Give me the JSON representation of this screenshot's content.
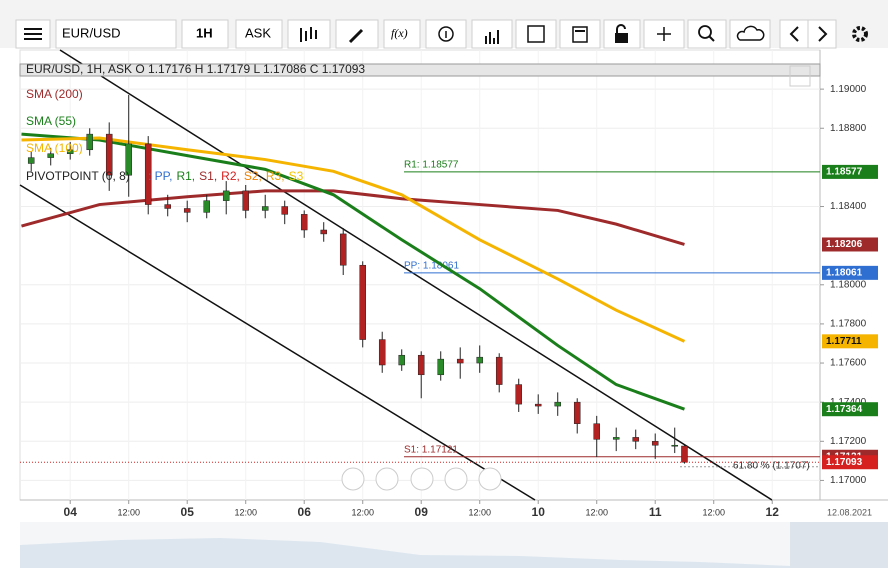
{
  "toolbar": {
    "symbol": "EUR/USD",
    "interval": "1H",
    "price_type": "ASK",
    "fx_label": "f(x)"
  },
  "chart_data": {
    "type": "candlestick",
    "header": "EUR/USD, 1H, ASK   O 1.17176 H 1.17179 L 1.17086 C 1.17093",
    "date_label": "12.08.2021",
    "x": [
      -8,
      -4,
      0,
      4,
      8,
      12,
      16,
      20,
      24,
      28,
      32,
      36,
      40,
      44,
      48,
      52,
      56,
      60,
      64,
      68,
      72,
      76,
      80,
      84,
      88,
      92,
      96,
      100,
      104,
      108,
      112,
      116,
      120,
      124,
      126
    ],
    "open": [
      1.1862,
      1.1865,
      1.1867,
      1.1869,
      1.1877,
      1.1856,
      1.1872,
      1.1841,
      1.1839,
      1.1837,
      1.1843,
      1.1848,
      1.1838,
      1.184,
      1.1836,
      1.1828,
      1.1826,
      1.181,
      1.1772,
      1.1759,
      1.1764,
      1.1754,
      1.1762,
      1.176,
      1.1763,
      1.1749,
      1.1739,
      1.1738,
      1.174,
      1.1729,
      1.1721,
      1.1722,
      1.172,
      1.1718,
      1.17176
    ],
    "high": [
      1.1868,
      1.187,
      1.1873,
      1.188,
      1.1883,
      1.1897,
      1.1876,
      1.1846,
      1.1843,
      1.1846,
      1.1853,
      1.1851,
      1.1846,
      1.1843,
      1.1838,
      1.1832,
      1.1829,
      1.1812,
      1.1776,
      1.1767,
      1.1766,
      1.1766,
      1.1768,
      1.1769,
      1.1765,
      1.1752,
      1.1744,
      1.1745,
      1.1742,
      1.1733,
      1.1727,
      1.1726,
      1.1724,
      1.1727,
      1.17179
    ],
    "low": [
      1.1858,
      1.1861,
      1.1864,
      1.1866,
      1.1848,
      1.1845,
      1.1836,
      1.1835,
      1.1832,
      1.1834,
      1.1836,
      1.1834,
      1.1834,
      1.1831,
      1.1824,
      1.1822,
      1.1805,
      1.1768,
      1.1755,
      1.1756,
      1.1742,
      1.1751,
      1.1752,
      1.1755,
      1.1745,
      1.1735,
      1.1734,
      1.1733,
      1.1724,
      1.1712,
      1.1715,
      1.1716,
      1.1711,
      1.1714,
      1.17086
    ],
    "close": [
      1.1865,
      1.1867,
      1.1869,
      1.1877,
      1.1856,
      1.1872,
      1.1841,
      1.1839,
      1.1837,
      1.1843,
      1.1848,
      1.1838,
      1.184,
      1.1836,
      1.1828,
      1.1826,
      1.181,
      1.1772,
      1.1759,
      1.1764,
      1.1754,
      1.1762,
      1.176,
      1.1763,
      1.1749,
      1.1739,
      1.1738,
      1.174,
      1.1729,
      1.1721,
      1.1722,
      1.172,
      1.1718,
      1.1718,
      1.17093
    ],
    "up_color": "#2a8a2a",
    "down_color": "#b22222",
    "indicators": [
      {
        "name": "SMA (200)",
        "color": "#9e2a2b",
        "x": [
          -10,
          6,
          24,
          40,
          54,
          68,
          84,
          100,
          112,
          126
        ],
        "values": [
          1.183,
          1.1841,
          1.1845,
          1.1848,
          1.1848,
          1.1844,
          1.1841,
          1.1838,
          1.1831,
          1.18206
        ]
      },
      {
        "name": "SMA (55)",
        "color": "#1a7f1a",
        "x": [
          -10,
          6,
          24,
          40,
          54,
          68,
          84,
          100,
          112,
          126
        ],
        "values": [
          1.1877,
          1.1874,
          1.1866,
          1.1859,
          1.1846,
          1.1823,
          1.1798,
          1.1769,
          1.1749,
          1.17364
        ]
      },
      {
        "name": "SMA (100)",
        "color": "#f5b400",
        "x": [
          -10,
          6,
          24,
          40,
          54,
          68,
          84,
          100,
          112,
          126
        ],
        "values": [
          1.1874,
          1.1875,
          1.1869,
          1.1864,
          1.1858,
          1.1846,
          1.1823,
          1.1803,
          1.1787,
          1.17711
        ]
      }
    ],
    "pivot_name": "PIVOTPOINT (0, 8)",
    "pivot_parts": [
      {
        "text": ": PP,",
        "color": "#2f6fd1"
      },
      {
        "text": "R1,",
        "color": "#1a7f1a"
      },
      {
        "text": "S1,",
        "color": "#9e2a2b"
      },
      {
        "text": "R2,",
        "color": "#d62020"
      },
      {
        "text": "S2,",
        "color": "#f08000"
      },
      {
        "text": "R3,",
        "color": "#f0a000"
      },
      {
        "text": "S3",
        "color": "#f5c400"
      }
    ],
    "levels": [
      {
        "label": "R1: 1.18577",
        "value": 1.18577,
        "color": "#1a7f1a"
      },
      {
        "label": "PP: 1.18061",
        "value": 1.18061,
        "color": "#2f6fd1"
      },
      {
        "label": "S1: 1.17121",
        "value": 1.17121,
        "color": "#9e2a2b"
      }
    ],
    "fib_label": "61.80 % (1.1707)",
    "fib_value": 1.1707,
    "price_tags": [
      {
        "value": 1.18577,
        "color": "#1a7f1a"
      },
      {
        "value": 1.18206,
        "color": "#9e2a2b"
      },
      {
        "value": 1.18061,
        "color": "#2f6fd1"
      },
      {
        "value": 1.17711,
        "color": "#f5b400"
      },
      {
        "value": 1.17364,
        "color": "#1a7f1a"
      },
      {
        "value": 1.17121,
        "color": "#9e2a2b"
      },
      {
        "value": 1.17093,
        "color": "#d62020"
      }
    ],
    "xlim": [
      -10.3,
      153.8
    ],
    "xticks": [
      {
        "value": 0,
        "label": "04"
      },
      {
        "value": 12,
        "label": "12:00"
      },
      {
        "value": 24,
        "label": "05"
      },
      {
        "value": 36,
        "label": "12:00"
      },
      {
        "value": 48,
        "label": "06"
      },
      {
        "value": 60,
        "label": "12:00"
      },
      {
        "value": 72,
        "label": "09"
      },
      {
        "value": 84,
        "label": "12:00"
      },
      {
        "value": 96,
        "label": "10"
      },
      {
        "value": 108,
        "label": "12:00"
      },
      {
        "value": 120,
        "label": "11"
      },
      {
        "value": 132,
        "label": "12:00"
      },
      {
        "value": 144,
        "label": "12"
      }
    ],
    "ylim": [
      1.169,
      1.192
    ],
    "yticks": [
      {
        "value": 1.17,
        "label": "1.17000"
      },
      {
        "value": 1.172,
        "label": "1.17200"
      },
      {
        "value": 1.174,
        "label": "1.17400"
      },
      {
        "value": 1.176,
        "label": "1.17600"
      },
      {
        "value": 1.178,
        "label": "1.17800"
      },
      {
        "value": 1.18,
        "label": "1.18000"
      },
      {
        "value": 1.184,
        "label": "1.18400"
      },
      {
        "value": 1.188,
        "label": "1.18800"
      },
      {
        "value": 1.19,
        "label": "1.19000"
      }
    ],
    "grid": true
  }
}
